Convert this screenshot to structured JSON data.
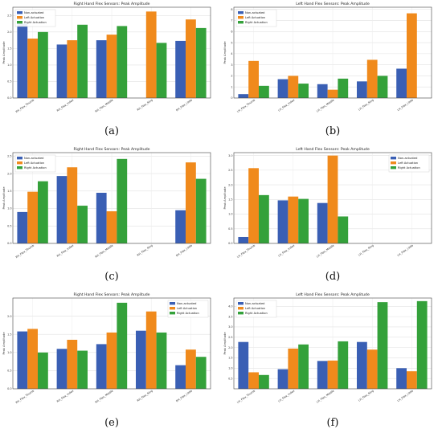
{
  "colors": [
    "#3a5fb4",
    "#f08a1c",
    "#34a13a"
  ],
  "chart_data": [
    {
      "type": "bar",
      "caption": "(a)",
      "title": "Right Hand Flex Sensors: Peak Amplitude",
      "ylabel": "Peak Amplitude",
      "xlabel": "",
      "ylim": [
        0,
        2.75
      ],
      "yticks": [
        0.0,
        0.5,
        1.0,
        1.5,
        2.0,
        2.5
      ],
      "grid": true,
      "legend_position": "top-left",
      "categories": [
        "RH_Flex_Thumb",
        "RH_Flex_Index",
        "RH_Flex_Middle",
        "RH_Flex_Ring",
        "RH_Flex_Little"
      ],
      "series": [
        {
          "name": "Non-actuated",
          "values": [
            2.25,
            1.62,
            1.75,
            null,
            1.73
          ]
        },
        {
          "name": "Left Actuation",
          "values": [
            1.8,
            1.75,
            1.92,
            2.62,
            2.38
          ]
        },
        {
          "name": "Right Actuation",
          "values": [
            2.0,
            2.22,
            2.18,
            1.67,
            2.12
          ]
        }
      ]
    },
    {
      "type": "bar",
      "caption": "(b)",
      "title": "Left Hand Flex Sensors: Peak Amplitude",
      "ylabel": "Peak Amplitude",
      "xlabel": "",
      "ylim": [
        0,
        8.2
      ],
      "yticks": [
        0,
        1,
        2,
        3,
        4,
        5,
        6,
        7,
        8
      ],
      "grid": true,
      "legend_position": "top-left",
      "categories": [
        "LH_Flex_Thumb",
        "LH_Flex_Index",
        "LH_Flex_Middle",
        "LH_Flex_Ring",
        "LH_Flex_Little"
      ],
      "series": [
        {
          "name": "Non-actuated",
          "values": [
            0.35,
            1.7,
            1.25,
            1.5,
            2.65
          ]
        },
        {
          "name": "Left Actuation",
          "values": [
            3.35,
            2.0,
            0.75,
            3.45,
            7.65
          ]
        },
        {
          "name": "Right Actuation",
          "values": [
            1.1,
            1.3,
            1.75,
            2.0,
            null
          ]
        }
      ]
    },
    {
      "type": "bar",
      "caption": "(c)",
      "title": "Right Hand Flex Sensors: Peak Amplitude",
      "ylabel": "Peak Amplitude",
      "xlabel": "",
      "ylim": [
        0,
        2.6
      ],
      "yticks": [
        0.0,
        0.5,
        1.0,
        1.5,
        2.0,
        2.5
      ],
      "grid": true,
      "legend_position": "top-left",
      "categories": [
        "RH_Flex_Thumb",
        "RH_Flex_Index",
        "RH_Flex_Middle",
        "RH_Flex_Ring",
        "RH_Flex_Little"
      ],
      "series": [
        {
          "name": "Non-actuated",
          "values": [
            0.9,
            1.93,
            1.45,
            null,
            0.95
          ]
        },
        {
          "name": "Left Actuation",
          "values": [
            1.48,
            2.18,
            0.92,
            null,
            2.32
          ]
        },
        {
          "name": "Right Actuation",
          "values": [
            1.78,
            1.08,
            2.42,
            null,
            1.85
          ]
        }
      ]
    },
    {
      "type": "bar",
      "caption": "(d)",
      "title": "Left Hand Flex Sensors: Peak Amplitude",
      "ylabel": "Peak Amplitude",
      "xlabel": "",
      "ylim": [
        0,
        3.1
      ],
      "yticks": [
        0.0,
        0.5,
        1.0,
        1.5,
        2.0,
        2.5,
        3.0
      ],
      "grid": true,
      "legend_position": "top-right",
      "categories": [
        "LH_Flex_Thumb",
        "LH_Flex_Index",
        "LH_Flex_Middle",
        "LH_Flex_Ring",
        "LH_Flex_Little"
      ],
      "series": [
        {
          "name": "Non-actuated",
          "values": [
            0.22,
            1.47,
            1.38,
            null,
            null
          ]
        },
        {
          "name": "Left Actuation",
          "values": [
            2.57,
            1.6,
            3.0,
            null,
            null
          ]
        },
        {
          "name": "Right Actuation",
          "values": [
            1.65,
            1.52,
            0.92,
            null,
            null
          ]
        }
      ]
    },
    {
      "type": "bar",
      "caption": "(e)",
      "title": "Right Hand Flex Sensors: Peak Amplitude",
      "ylabel": "Peak Amplitude",
      "xlabel": "",
      "ylim": [
        0,
        2.5
      ],
      "yticks": [
        0.0,
        0.5,
        1.0,
        1.5,
        2.0
      ],
      "grid": true,
      "legend_position": "top-right",
      "categories": [
        "RH_Flex_Thumb",
        "RH_Flex_Index",
        "RH_Flex_Middle",
        "RH_Flex_Ring",
        "RH_Flex_Little"
      ],
      "series": [
        {
          "name": "Non-actuated",
          "values": [
            1.58,
            1.1,
            1.23,
            1.6,
            0.65
          ]
        },
        {
          "name": "Left Actuation",
          "values": [
            1.65,
            1.35,
            1.55,
            2.13,
            1.08
          ]
        },
        {
          "name": "Right Actuation",
          "values": [
            1.0,
            1.05,
            2.37,
            1.55,
            0.88
          ]
        }
      ]
    },
    {
      "type": "bar",
      "caption": "(f)",
      "title": "Left Hand Flex Sensors: Peak Amplitude",
      "ylabel": "Peak Amplitude",
      "xlabel": "",
      "ylim": [
        0,
        4.4
      ],
      "yticks": [
        0.5,
        1.0,
        1.5,
        2.0,
        2.5,
        3.0,
        3.5,
        4.0
      ],
      "grid": true,
      "legend_position": "top-left",
      "categories": [
        "LH_Flex_Thumb",
        "LH_Flex_Index",
        "LH_Flex_Middle",
        "LH_Flex_Ring",
        "LH_Flex_Little"
      ],
      "series": [
        {
          "name": "Non-actuated",
          "values": [
            2.27,
            0.95,
            1.35,
            2.27,
            1.0
          ]
        },
        {
          "name": "Left Actuation",
          "values": [
            0.8,
            1.95,
            1.37,
            1.9,
            0.85
          ]
        },
        {
          "name": "Right Actuation",
          "values": [
            0.67,
            2.15,
            2.3,
            4.2,
            4.25
          ]
        }
      ]
    }
  ]
}
